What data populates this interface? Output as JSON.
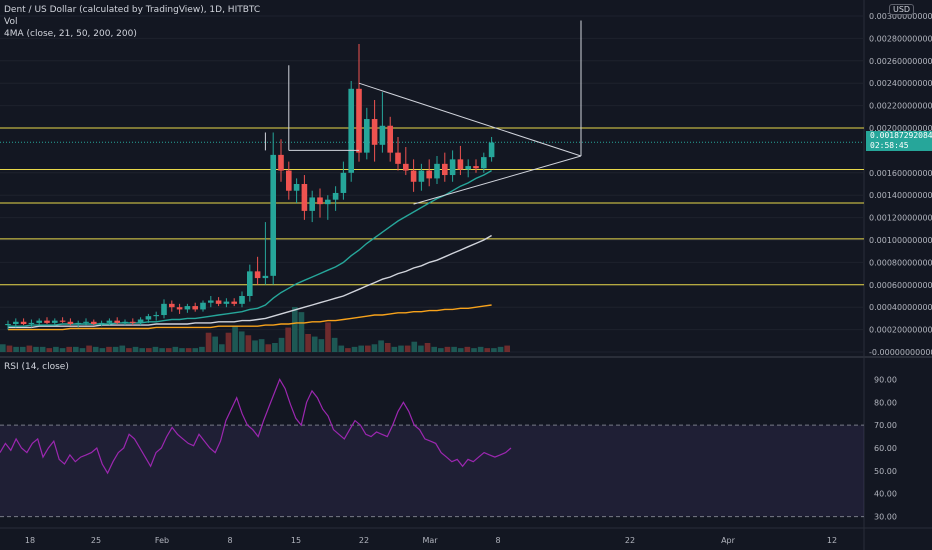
{
  "legend": {
    "symbol": "Dent / US Dollar (calculated by TradingView), 1D, HITBTC",
    "vol": "Vol",
    "ma": "4MA (close, 21, 50, 200, 200)",
    "rsi": "RSI (14, close)"
  },
  "currency_badge": "USD",
  "last_price": {
    "price": "0.00187292084",
    "countdown": "02:58:45"
  },
  "colors": {
    "up": "#26a69a",
    "down": "#ef5350",
    "ma21": "#26a69a",
    "ma50": "#d1d4dc",
    "ma200": "#f7a21b",
    "rsi": "#9c27b0",
    "level": "#e8d84a"
  },
  "chart_data": [
    {
      "type": "candlestick",
      "x_tick_labels": [
        "18",
        "25",
        "Feb",
        "8",
        "15",
        "22",
        "Mar",
        "8",
        "22",
        "Apr",
        "12"
      ],
      "y_tick_labels": [
        "0.00300000000",
        "0.00280000000",
        "0.00260000000",
        "0.00240000000",
        "0.00220000000",
        "0.00200000000",
        "0.00160000000",
        "0.00140000000",
        "0.00120000000",
        "0.00100000000",
        "0.00080000000",
        "0.00060000000",
        "0.00040000000",
        "0.00020000000",
        "-0.00000000000"
      ],
      "ylim": [
        0,
        0.003
      ],
      "horizontal_levels": [
        0.002,
        0.00163,
        0.00133,
        0.00101,
        0.0006
      ],
      "candles": [
        {
          "o": 0.00024,
          "h": 0.00028,
          "l": 0.0002,
          "c": 0.00025
        },
        {
          "o": 0.00025,
          "h": 0.0003,
          "l": 0.00022,
          "c": 0.00027
        },
        {
          "o": 0.00027,
          "h": 0.0003,
          "l": 0.00024,
          "c": 0.00025
        },
        {
          "o": 0.00025,
          "h": 0.00029,
          "l": 0.00022,
          "c": 0.00026
        },
        {
          "o": 0.00026,
          "h": 0.0003,
          "l": 0.00024,
          "c": 0.00028
        },
        {
          "o": 0.00028,
          "h": 0.00031,
          "l": 0.00025,
          "c": 0.00026
        },
        {
          "o": 0.00026,
          "h": 0.0003,
          "l": 0.00024,
          "c": 0.00028
        },
        {
          "o": 0.00028,
          "h": 0.00031,
          "l": 0.00026,
          "c": 0.00027
        },
        {
          "o": 0.00027,
          "h": 0.0003,
          "l": 0.00024,
          "c": 0.00025
        },
        {
          "o": 0.00025,
          "h": 0.00028,
          "l": 0.00022,
          "c": 0.00026
        },
        {
          "o": 0.00026,
          "h": 0.0003,
          "l": 0.00024,
          "c": 0.00027
        },
        {
          "o": 0.00027,
          "h": 0.00029,
          "l": 0.00024,
          "c": 0.00025
        },
        {
          "o": 0.00025,
          "h": 0.00028,
          "l": 0.00023,
          "c": 0.00026
        },
        {
          "o": 0.00026,
          "h": 0.0003,
          "l": 0.00024,
          "c": 0.00028
        },
        {
          "o": 0.00028,
          "h": 0.00031,
          "l": 0.00025,
          "c": 0.00026
        },
        {
          "o": 0.00026,
          "h": 0.00029,
          "l": 0.00024,
          "c": 0.00027
        },
        {
          "o": 0.00027,
          "h": 0.0003,
          "l": 0.00024,
          "c": 0.00026
        },
        {
          "o": 0.00026,
          "h": 0.00031,
          "l": 0.00024,
          "c": 0.00029
        },
        {
          "o": 0.00029,
          "h": 0.00034,
          "l": 0.00026,
          "c": 0.00032
        },
        {
          "o": 0.00032,
          "h": 0.00036,
          "l": 0.00028,
          "c": 0.00033
        },
        {
          "o": 0.00033,
          "h": 0.00047,
          "l": 0.0003,
          "c": 0.00043
        },
        {
          "o": 0.00043,
          "h": 0.00046,
          "l": 0.00036,
          "c": 0.0004
        },
        {
          "o": 0.0004,
          "h": 0.00043,
          "l": 0.00034,
          "c": 0.00038
        },
        {
          "o": 0.00038,
          "h": 0.00043,
          "l": 0.00035,
          "c": 0.00041
        },
        {
          "o": 0.00041,
          "h": 0.00044,
          "l": 0.00036,
          "c": 0.00038
        },
        {
          "o": 0.00038,
          "h": 0.00046,
          "l": 0.00036,
          "c": 0.00044
        },
        {
          "o": 0.00044,
          "h": 0.0005,
          "l": 0.0004,
          "c": 0.00046
        },
        {
          "o": 0.00046,
          "h": 0.00049,
          "l": 0.00041,
          "c": 0.00043
        },
        {
          "o": 0.00043,
          "h": 0.00048,
          "l": 0.0004,
          "c": 0.00045
        },
        {
          "o": 0.00045,
          "h": 0.00048,
          "l": 0.00041,
          "c": 0.00043
        },
        {
          "o": 0.00043,
          "h": 0.00054,
          "l": 0.0004,
          "c": 0.0005
        },
        {
          "o": 0.0005,
          "h": 0.00078,
          "l": 0.00045,
          "c": 0.00072
        },
        {
          "o": 0.00072,
          "h": 0.00085,
          "l": 0.0006,
          "c": 0.00066
        },
        {
          "o": 0.00066,
          "h": 0.00116,
          "l": 0.0006,
          "c": 0.00068
        },
        {
          "o": 0.00068,
          "h": 0.00196,
          "l": 0.0006,
          "c": 0.00176
        },
        {
          "o": 0.00176,
          "h": 0.0019,
          "l": 0.00152,
          "c": 0.00162
        },
        {
          "o": 0.00162,
          "h": 0.0017,
          "l": 0.00136,
          "c": 0.00144
        },
        {
          "o": 0.00144,
          "h": 0.00155,
          "l": 0.00133,
          "c": 0.0015
        },
        {
          "o": 0.0015,
          "h": 0.00158,
          "l": 0.00118,
          "c": 0.00126
        },
        {
          "o": 0.00126,
          "h": 0.00144,
          "l": 0.00116,
          "c": 0.00138
        },
        {
          "o": 0.00138,
          "h": 0.00146,
          "l": 0.0012,
          "c": 0.00132
        },
        {
          "o": 0.00132,
          "h": 0.0014,
          "l": 0.00118,
          "c": 0.00136
        },
        {
          "o": 0.00136,
          "h": 0.00148,
          "l": 0.00126,
          "c": 0.00142
        },
        {
          "o": 0.00142,
          "h": 0.0017,
          "l": 0.00136,
          "c": 0.0016
        },
        {
          "o": 0.0016,
          "h": 0.00242,
          "l": 0.00152,
          "c": 0.00235
        },
        {
          "o": 0.00235,
          "h": 0.00275,
          "l": 0.0017,
          "c": 0.00178
        },
        {
          "o": 0.00178,
          "h": 0.00218,
          "l": 0.00172,
          "c": 0.00208
        },
        {
          "o": 0.00208,
          "h": 0.00225,
          "l": 0.0017,
          "c": 0.00185
        },
        {
          "o": 0.00185,
          "h": 0.00232,
          "l": 0.00178,
          "c": 0.00202
        },
        {
          "o": 0.00202,
          "h": 0.0021,
          "l": 0.0017,
          "c": 0.00178
        },
        {
          "o": 0.00178,
          "h": 0.00192,
          "l": 0.00162,
          "c": 0.00168
        },
        {
          "o": 0.00168,
          "h": 0.00183,
          "l": 0.00158,
          "c": 0.00162
        },
        {
          "o": 0.00162,
          "h": 0.00172,
          "l": 0.00143,
          "c": 0.00152
        },
        {
          "o": 0.00152,
          "h": 0.00168,
          "l": 0.00144,
          "c": 0.00162
        },
        {
          "o": 0.00162,
          "h": 0.00172,
          "l": 0.00148,
          "c": 0.00155
        },
        {
          "o": 0.00155,
          "h": 0.00175,
          "l": 0.0015,
          "c": 0.00168
        },
        {
          "o": 0.00168,
          "h": 0.00178,
          "l": 0.00152,
          "c": 0.00158
        },
        {
          "o": 0.00158,
          "h": 0.0018,
          "l": 0.00152,
          "c": 0.00172
        },
        {
          "o": 0.00172,
          "h": 0.00184,
          "l": 0.00158,
          "c": 0.00163
        },
        {
          "o": 0.00163,
          "h": 0.00172,
          "l": 0.00156,
          "c": 0.00166
        },
        {
          "o": 0.00166,
          "h": 0.00172,
          "l": 0.0016,
          "c": 0.00164
        },
        {
          "o": 0.00164,
          "h": 0.00178,
          "l": 0.0016,
          "c": 0.00174
        },
        {
          "o": 0.00174,
          "h": 0.00192,
          "l": 0.0017,
          "c": 0.00187
        }
      ],
      "ma21": [
        0.00023,
        0.00023,
        0.00023,
        0.00024,
        0.00024,
        0.00024,
        0.00024,
        0.00025,
        0.00025,
        0.00025,
        0.00025,
        0.00025,
        0.00025,
        0.00025,
        0.00026,
        0.00026,
        0.00026,
        0.00026,
        0.00027,
        0.00027,
        0.00028,
        0.00029,
        0.00029,
        0.0003,
        0.0003,
        0.00031,
        0.00032,
        0.00033,
        0.00034,
        0.00035,
        0.00036,
        0.00038,
        0.00039,
        0.00042,
        0.00048,
        0.00053,
        0.00057,
        0.00061,
        0.00064,
        0.00067,
        0.0007,
        0.00073,
        0.00076,
        0.0008,
        0.00086,
        0.00091,
        0.00097,
        0.00102,
        0.00107,
        0.00112,
        0.00117,
        0.00121,
        0.00125,
        0.00129,
        0.00133,
        0.00137,
        0.0014,
        0.00144,
        0.00148,
        0.00151,
        0.00155,
        0.00158,
        0.00162
      ],
      "ma50": [
        0.00022,
        0.00022,
        0.00022,
        0.00022,
        0.00023,
        0.00023,
        0.00023,
        0.00023,
        0.00023,
        0.00023,
        0.00023,
        0.00023,
        0.00024,
        0.00024,
        0.00024,
        0.00024,
        0.00024,
        0.00024,
        0.00024,
        0.00025,
        0.00025,
        0.00025,
        0.00025,
        0.00025,
        0.00026,
        0.00026,
        0.00026,
        0.00027,
        0.00027,
        0.00027,
        0.00028,
        0.00028,
        0.00029,
        0.0003,
        0.00032,
        0.00034,
        0.00036,
        0.00038,
        0.0004,
        0.00042,
        0.00044,
        0.00046,
        0.00048,
        0.0005,
        0.00053,
        0.00056,
        0.00059,
        0.00062,
        0.00065,
        0.00067,
        0.0007,
        0.00072,
        0.00075,
        0.00077,
        0.0008,
        0.00082,
        0.00085,
        0.00088,
        0.00091,
        0.00094,
        0.00097,
        0.001,
        0.00104
      ],
      "ma200": [
        0.0002,
        0.0002,
        0.0002,
        0.0002,
        0.0002,
        0.0002,
        0.0002,
        0.0002,
        0.00021,
        0.00021,
        0.00021,
        0.00021,
        0.00021,
        0.00021,
        0.00021,
        0.00021,
        0.00021,
        0.00021,
        0.00021,
        0.00022,
        0.00022,
        0.00022,
        0.00022,
        0.00022,
        0.00022,
        0.00022,
        0.00022,
        0.00023,
        0.00023,
        0.00023,
        0.00023,
        0.00023,
        0.00023,
        0.00024,
        0.00024,
        0.00025,
        0.00025,
        0.00026,
        0.00026,
        0.00027,
        0.00027,
        0.00028,
        0.00028,
        0.00029,
        0.0003,
        0.00031,
        0.00032,
        0.00033,
        0.00033,
        0.00034,
        0.00035,
        0.00035,
        0.00036,
        0.00036,
        0.00037,
        0.00037,
        0.00038,
        0.00038,
        0.00039,
        0.00039,
        0.0004,
        0.00041,
        0.00042
      ],
      "volume": [
        0.6,
        0.5,
        0.4,
        0.4,
        0.5,
        0.4,
        0.4,
        0.3,
        0.4,
        0.3,
        0.4,
        0.4,
        0.3,
        0.5,
        0.4,
        0.3,
        0.4,
        0.4,
        0.5,
        0.3,
        0.4,
        0.3,
        0.3,
        0.4,
        0.3,
        0.3,
        0.4,
        0.3,
        0.3,
        0.3,
        0.4,
        1.5,
        1.2,
        0.6,
        1.5,
        2.0,
        1.6,
        1.3,
        0.9,
        1.0,
        0.6,
        0.7,
        1.1,
        1.9,
        3.5,
        3.1,
        1.4,
        1.2,
        1.0,
        2.3,
        1.1,
        0.5,
        0.3,
        0.4,
        0.5,
        0.5,
        0.6,
        0.9,
        0.7,
        0.4,
        0.5,
        0.5,
        0.8,
        0.5,
        0.7,
        0.4,
        0.3,
        0.4,
        0.4,
        0.3,
        0.4,
        0.3,
        0.4,
        0.3,
        0.3,
        0.4,
        0.5
      ],
      "annotations": {
        "triangle_upper": [
          [
            0.0024,
            0.00175
          ]
        ],
        "triangle_lower": [
          [
            0.00132,
            0.00175
          ]
        ]
      }
    },
    {
      "type": "line",
      "title": "RSI (14, close)",
      "ylim": [
        25,
        95
      ],
      "y_tick_labels": [
        "90.00",
        "80.00",
        "70.00",
        "60.00",
        "50.00",
        "40.00",
        "30.00"
      ],
      "bands": [
        30,
        70
      ],
      "values": [
        58,
        62,
        59,
        64,
        60,
        58,
        62,
        64,
        56,
        60,
        63,
        55,
        53,
        57,
        54,
        56,
        57,
        58,
        60,
        53,
        49,
        54,
        58,
        60,
        66,
        64,
        60,
        56,
        52,
        58,
        60,
        65,
        69,
        66,
        64,
        62,
        61,
        66,
        63,
        60,
        58,
        63,
        72,
        77,
        82,
        75,
        70,
        68,
        65,
        72,
        78,
        84,
        90,
        86,
        79,
        73,
        70,
        80,
        85,
        82,
        77,
        74,
        68,
        66,
        64,
        68,
        72,
        70,
        66,
        65,
        67,
        66,
        65,
        70,
        76,
        80,
        76,
        70,
        68,
        64,
        63,
        62,
        58,
        56,
        54,
        55,
        52,
        55,
        54,
        56,
        58,
        57,
        56,
        57,
        58,
        60
      ],
      "series": [
        {
          "name": "RSI",
          "values": "values"
        }
      ]
    }
  ]
}
